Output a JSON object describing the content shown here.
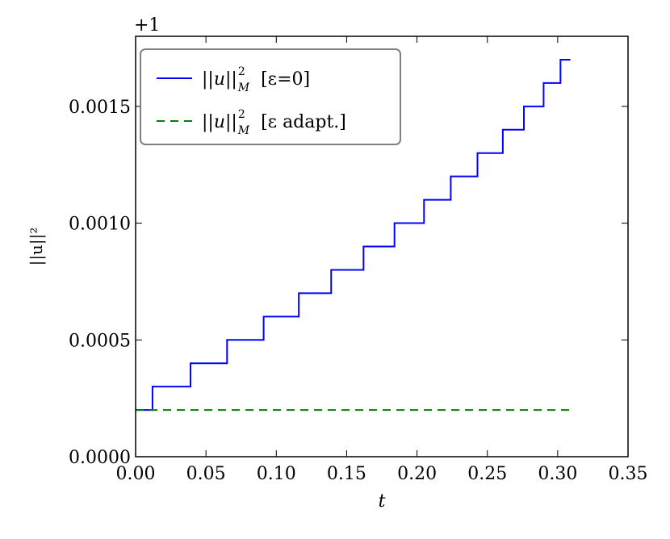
{
  "chart_data": {
    "type": "line",
    "offset_label": "+1",
    "xlabel": "t",
    "ylabel": "||u||²",
    "xlim": [
      0.0,
      0.35
    ],
    "ylim": [
      0.0,
      0.0018
    ],
    "xticks": [
      "0.00",
      "0.05",
      "0.10",
      "0.15",
      "0.20",
      "0.25",
      "0.30",
      "0.35"
    ],
    "yticks": [
      "0.0000",
      "0.0005",
      "0.0010",
      "0.0015"
    ],
    "ytick_values": [
      0.0,
      0.0005,
      0.001,
      0.0015
    ],
    "xtick_values": [
      0.0,
      0.05,
      0.1,
      0.15,
      0.2,
      0.25,
      0.3,
      0.35
    ],
    "grid": false,
    "legend_placement": "upper-left",
    "series": [
      {
        "name": "||u||²_M [ε=0]",
        "legend_main": "||u||",
        "legend_sup": "2",
        "legend_sub": "M",
        "legend_suffix": "[ε=0]",
        "color": "#0000ff",
        "style": "solid",
        "x": [
          0.0,
          0.012,
          0.012,
          0.039,
          0.039,
          0.065,
          0.065,
          0.091,
          0.091,
          0.116,
          0.116,
          0.139,
          0.139,
          0.162,
          0.162,
          0.184,
          0.184,
          0.205,
          0.205,
          0.224,
          0.224,
          0.243,
          0.243,
          0.261,
          0.261,
          0.276,
          0.276,
          0.29,
          0.29,
          0.302,
          0.302,
          0.309
        ],
        "y": [
          0.0002,
          0.0002,
          0.0003,
          0.0003,
          0.0004,
          0.0004,
          0.0005,
          0.0005,
          0.0006,
          0.0006,
          0.0007,
          0.0007,
          0.0008,
          0.0008,
          0.0009,
          0.0009,
          0.001,
          0.001,
          0.0011,
          0.0011,
          0.0012,
          0.0012,
          0.0013,
          0.0013,
          0.0014,
          0.0014,
          0.0015,
          0.0015,
          0.0016,
          0.0016,
          0.0017,
          0.0017
        ]
      },
      {
        "name": "||u||²_M [ε adapt.]",
        "legend_main": "||u||",
        "legend_sup": "2",
        "legend_sub": "M",
        "legend_suffix": "[ε adapt.]",
        "color": "#008000",
        "style": "dashed",
        "x": [
          0.0,
          0.309
        ],
        "y": [
          0.0002,
          0.0002
        ]
      }
    ]
  }
}
